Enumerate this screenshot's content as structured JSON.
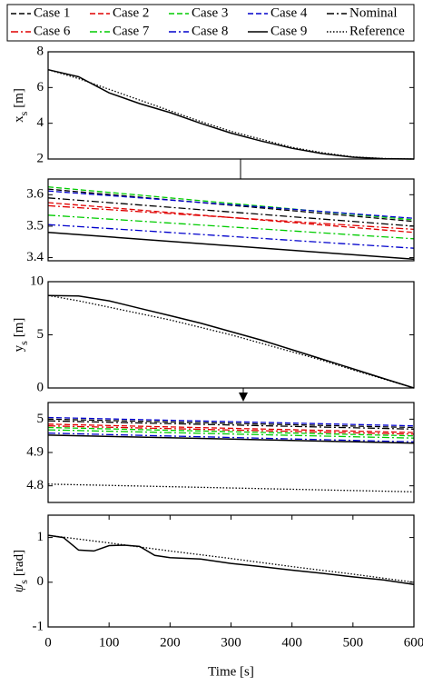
{
  "chart_data": [
    {
      "type": "line",
      "ylabel": "x",
      "ylabel_sub": "s",
      "ylabel_unit": "[m]",
      "xlim": [
        0,
        600
      ],
      "ylim": [
        2,
        8
      ],
      "yticks": [
        2,
        4,
        6,
        8
      ],
      "series": [
        {
          "name": "Case 9",
          "color": "#000000",
          "style": "solid",
          "x": [
            0,
            50,
            100,
            150,
            200,
            250,
            300,
            350,
            400,
            450,
            500,
            550,
            600
          ],
          "values": [
            7,
            6.6,
            5.7,
            5.1,
            4.6,
            4.0,
            3.45,
            3.0,
            2.6,
            2.3,
            2.1,
            2.02,
            2.0
          ]
        },
        {
          "name": "Reference",
          "color": "#000000",
          "style": "dotted",
          "x": [
            0,
            50,
            100,
            150,
            200,
            250,
            300,
            350,
            400,
            450,
            500,
            550,
            600
          ],
          "values": [
            7,
            6.5,
            5.9,
            5.3,
            4.7,
            4.1,
            3.55,
            3.1,
            2.65,
            2.35,
            2.12,
            2.03,
            2.0
          ]
        }
      ]
    },
    {
      "type": "line",
      "xlim": [
        278,
        351
      ],
      "ylim": [
        3.39,
        3.65
      ],
      "yticks": [
        3.4,
        3.5,
        3.6
      ],
      "series": [
        {
          "name": "Case 1",
          "color": "#000000",
          "style": "dashed",
          "x": [
            278,
            351
          ],
          "values": [
            3.618,
            3.515
          ]
        },
        {
          "name": "Case 2",
          "color": "#e00000",
          "style": "dashed",
          "x": [
            278,
            351
          ],
          "values": [
            3.575,
            3.48
          ]
        },
        {
          "name": "Case 3",
          "color": "#00cc00",
          "style": "dashed",
          "x": [
            278,
            351
          ],
          "values": [
            3.625,
            3.52
          ]
        },
        {
          "name": "Case 4",
          "color": "#0000cc",
          "style": "dashed",
          "x": [
            278,
            351
          ],
          "values": [
            3.612,
            3.525
          ]
        },
        {
          "name": "Nominal",
          "color": "#000000",
          "style": "dashdot",
          "x": [
            278,
            351
          ],
          "values": [
            3.59,
            3.5
          ]
        },
        {
          "name": "Case 6",
          "color": "#e00000",
          "style": "dashdot",
          "x": [
            278,
            351
          ],
          "values": [
            3.565,
            3.49
          ]
        },
        {
          "name": "Case 7",
          "color": "#00cc00",
          "style": "dashdot",
          "x": [
            278,
            351
          ],
          "values": [
            3.535,
            3.46
          ]
        },
        {
          "name": "Case 8",
          "color": "#0000cc",
          "style": "dashdot",
          "x": [
            278,
            351
          ],
          "values": [
            3.505,
            3.43
          ]
        },
        {
          "name": "Case 9",
          "color": "#000000",
          "style": "solid",
          "x": [
            278,
            351
          ],
          "values": [
            3.48,
            3.395
          ]
        }
      ]
    },
    {
      "type": "line",
      "ylabel": "y",
      "ylabel_sub": "s",
      "ylabel_unit": "[m]",
      "xlim": [
        0,
        600
      ],
      "ylim": [
        0,
        10
      ],
      "yticks": [
        0,
        5,
        10
      ],
      "series": [
        {
          "name": "Case 9",
          "color": "#000000",
          "style": "solid",
          "x": [
            0,
            50,
            100,
            150,
            200,
            250,
            300,
            350,
            400,
            450,
            500,
            550,
            600
          ],
          "values": [
            8.7,
            8.65,
            8.2,
            7.5,
            6.8,
            6.1,
            5.3,
            4.5,
            3.6,
            2.7,
            1.8,
            0.9,
            0.0
          ]
        },
        {
          "name": "Reference",
          "color": "#000000",
          "style": "dotted",
          "x": [
            0,
            50,
            100,
            150,
            200,
            250,
            300,
            350,
            400,
            450,
            500,
            550,
            600
          ],
          "values": [
            8.7,
            8.2,
            7.6,
            7.0,
            6.4,
            5.7,
            5.0,
            4.2,
            3.4,
            2.6,
            1.7,
            0.85,
            0.0
          ]
        }
      ]
    },
    {
      "type": "line",
      "xlim": [
        285,
        355
      ],
      "ylim": [
        4.75,
        5.05
      ],
      "yticks": [
        4.8,
        4.9,
        5
      ],
      "series": [
        {
          "name": "Case 1",
          "color": "#000000",
          "style": "dashed",
          "x": [
            285,
            355
          ],
          "values": [
            5.0,
            4.975
          ]
        },
        {
          "name": "Case 2",
          "color": "#e00000",
          "style": "dashed",
          "x": [
            285,
            355
          ],
          "values": [
            4.985,
            4.96
          ]
        },
        {
          "name": "Case 3",
          "color": "#00cc00",
          "style": "dashed",
          "x": [
            285,
            355
          ],
          "values": [
            4.975,
            4.95
          ]
        },
        {
          "name": "Case 4",
          "color": "#0000cc",
          "style": "dashed",
          "x": [
            285,
            355
          ],
          "values": [
            5.005,
            4.98
          ]
        },
        {
          "name": "Nominal",
          "color": "#000000",
          "style": "dashdot",
          "x": [
            285,
            355
          ],
          "values": [
            4.995,
            4.97
          ]
        },
        {
          "name": "Case 6",
          "color": "#e00000",
          "style": "dashdot",
          "x": [
            285,
            355
          ],
          "values": [
            4.98,
            4.955
          ]
        },
        {
          "name": "Case 7",
          "color": "#00cc00",
          "style": "dashdot",
          "x": [
            285,
            355
          ],
          "values": [
            4.968,
            4.943
          ]
        },
        {
          "name": "Case 8",
          "color": "#0000cc",
          "style": "dashdot",
          "x": [
            285,
            355
          ],
          "values": [
            4.958,
            4.932
          ]
        },
        {
          "name": "Case 9",
          "color": "#000000",
          "style": "solid",
          "x": [
            285,
            355
          ],
          "values": [
            4.952,
            4.928
          ]
        },
        {
          "name": "Reference",
          "color": "#000000",
          "style": "dotted",
          "x": [
            285,
            355
          ],
          "values": [
            4.805,
            4.782
          ]
        }
      ]
    },
    {
      "type": "line",
      "ylabel": "ψ",
      "ylabel_sub": "s",
      "ylabel_unit": "[rad]",
      "xlabel": "Time [s]",
      "xlim": [
        0,
        600
      ],
      "ylim": [
        -1,
        1.5
      ],
      "yticks": [
        -1,
        0,
        1
      ],
      "xticks": [
        0,
        100,
        200,
        300,
        400,
        500,
        600
      ],
      "series": [
        {
          "name": "Case 9",
          "color": "#000000",
          "style": "solid",
          "x": [
            0,
            25,
            50,
            75,
            100,
            125,
            150,
            175,
            200,
            250,
            300,
            350,
            400,
            450,
            500,
            550,
            600
          ],
          "values": [
            1.05,
            1.0,
            0.72,
            0.7,
            0.82,
            0.83,
            0.8,
            0.6,
            0.55,
            0.52,
            0.42,
            0.35,
            0.27,
            0.2,
            0.12,
            0.05,
            -0.05
          ]
        },
        {
          "name": "Reference",
          "color": "#000000",
          "style": "dotted",
          "x": [
            0,
            100,
            200,
            300,
            400,
            500,
            600
          ],
          "values": [
            1.05,
            0.88,
            0.7,
            0.53,
            0.35,
            0.18,
            0.0
          ]
        }
      ]
    }
  ]
}
